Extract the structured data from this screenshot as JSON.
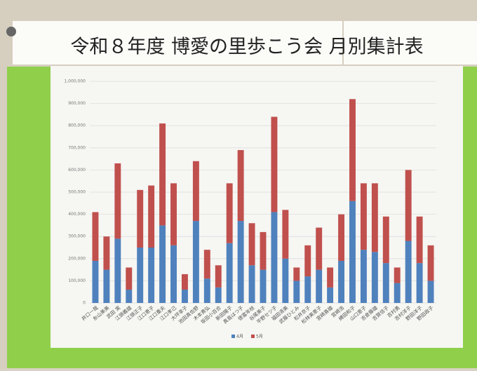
{
  "chart_data": {
    "type": "stacked-bar",
    "title": "令和８年度 博愛の里歩こう会 月別集計表",
    "categories": [
      "井口一哉",
      "糸山美美",
      "武田 実",
      "江頭義雄",
      "江頭正子",
      "江口恵子",
      "江口重夫",
      "江口孝己",
      "大坪幸子",
      "池田真佐野",
      "木本貴弘",
      "坂田小百合",
      "新田陽子",
      "真島はつ子",
      "徳富年枝",
      "谷尾美子",
      "平野セツ子",
      "福田清美",
      "武藤ひとみ",
      "松井京子",
      "松林美恵子",
      "宮崎喜雄",
      "宮崎浩",
      "縛田和子",
      "山口恵子",
      "吉倉藤雄",
      "吉賀信子",
      "吉村勇",
      "吉村洋子",
      "野田洋子",
      "野田政子"
    ],
    "series": [
      {
        "name": "4月",
        "color": "#4f81bd",
        "values": [
          190000,
          150000,
          290000,
          60000,
          250000,
          250000,
          350000,
          260000,
          60000,
          370000,
          110000,
          70000,
          270000,
          370000,
          170000,
          150000,
          410000,
          200000,
          100000,
          120000,
          150000,
          70000,
          190000,
          460000,
          240000,
          230000,
          180000,
          90000,
          280000,
          180000,
          100000
        ]
      },
      {
        "name": "5月",
        "color": "#c0504d",
        "values": [
          220000,
          150000,
          340000,
          100000,
          260000,
          280000,
          460000,
          280000,
          70000,
          270000,
          130000,
          100000,
          270000,
          320000,
          190000,
          170000,
          430000,
          220000,
          60000,
          140000,
          190000,
          90000,
          210000,
          460000,
          300000,
          310000,
          210000,
          70000,
          320000,
          210000,
          160000
        ]
      }
    ],
    "ylim": [
      0,
      1000000
    ],
    "yticks": [
      0,
      {
        "value": 100000,
        "label": "100,000"
      },
      {
        "value": 200000,
        "label": "200,000"
      },
      {
        "value": 300000,
        "label": "300,000"
      },
      {
        "value": 400000,
        "label": "400,000"
      },
      {
        "value": 500000,
        "label": "500,000"
      },
      {
        "value": 600000,
        "label": "600,000"
      },
      {
        "value": 700000,
        "label": "700,000"
      },
      {
        "value": 800000,
        "label": "800,000"
      },
      {
        "value": 900000,
        "label": "900,000"
      },
      {
        "value": 1000000,
        "label": "1,000,000"
      }
    ],
    "grid": true
  }
}
